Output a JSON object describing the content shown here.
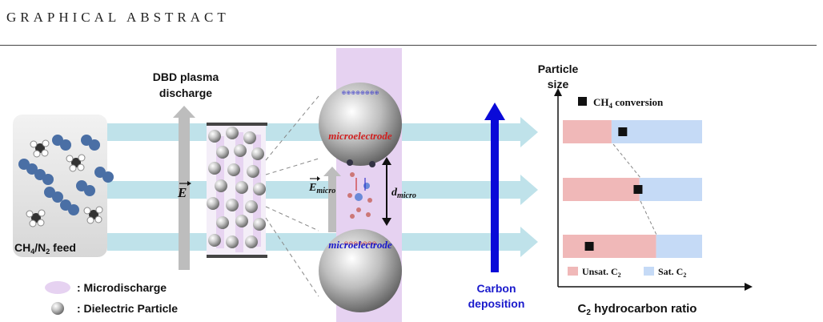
{
  "header": {
    "title": "GRAPHICAL ABSTRACT"
  },
  "diagram": {
    "plasma_label_1": "DBD plasma",
    "plasma_label_2": "discharge",
    "field_label": "E",
    "field_micro_label": "E",
    "field_micro_sub": "micro",
    "d_micro_label": "d",
    "d_micro_sub": "micro",
    "microelectrode_top": "microelectrode",
    "microelectrode_bottom": "microelectrode",
    "feed_label_main": "CH",
    "feed_label_sub4": "4",
    "feed_label_mid": "/N",
    "feed_label_sub2": "2",
    "feed_label_end": " feed",
    "carbon_label_1": "Carbon",
    "carbon_label_2": "deposition",
    "colors": {
      "beam": "#bfe2ea",
      "microdischarge": "#e6d2f1",
      "unsat": "#f0b8b8",
      "sat": "#c5daf6",
      "carbon_arrow": "#0a0ad8",
      "top_text": "#d02020",
      "bottom_text": "#1a1acc"
    }
  },
  "legend": {
    "microdischarge": ": Microdischarge",
    "dielectric": ": Dielectric Particle"
  },
  "chart_data": {
    "type": "bar",
    "orientation": "horizontal-stacked",
    "ylabel_1": "Particle",
    "ylabel_2": "size",
    "xlabel_main": "C",
    "xlabel_sub": "2",
    "xlabel_end": " hydrocarbon ratio",
    "marker_label_main": "CH",
    "marker_label_sub": "4",
    "marker_label_end": " conversion",
    "legend_unsat_main": "Unsat. C",
    "legend_unsat_sub": "2",
    "legend_sat_main": "Sat. C",
    "legend_sat_sub": "2",
    "series": [
      {
        "name": "Unsat. C2",
        "values": [
          0.35,
          0.55,
          0.67
        ]
      },
      {
        "name": "Sat. C2",
        "values": [
          0.65,
          0.45,
          0.33
        ]
      }
    ],
    "ch4_conversion": [
      0.43,
      0.54,
      0.19
    ]
  }
}
